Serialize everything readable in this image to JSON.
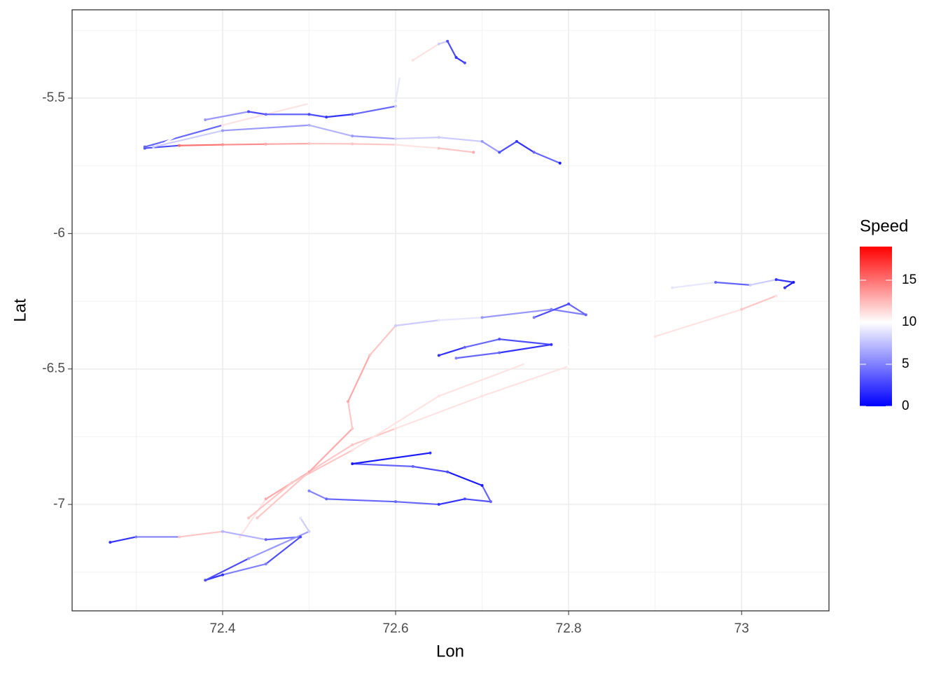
{
  "chart_data": {
    "type": "path",
    "xlabel": "Lon",
    "ylabel": "Lat",
    "xlim": [
      72.226,
      73.101
    ],
    "ylim": [
      -7.393,
      -5.174
    ],
    "xticks": [
      72.4,
      72.6,
      72.8,
      73.0
    ],
    "yticks": [
      -5.5,
      -6.0,
      -6.5,
      -7.0
    ],
    "xminor": [
      72.3,
      72.5,
      72.7,
      72.9,
      73.1
    ],
    "yminor": [
      -5.25,
      -5.75,
      -6.25,
      -6.75,
      -7.25
    ],
    "grid": true,
    "colorbar": {
      "title": "Speed",
      "lim": [
        0,
        19
      ],
      "ticks": [
        0,
        5,
        10,
        15
      ],
      "midpoint": 10,
      "low": "#0000ff",
      "mid": "#ffffff",
      "high": "#ff0000"
    },
    "series": [
      {
        "x": [
          72.31,
          72.35,
          72.4,
          72.45,
          72.5,
          72.55,
          72.6,
          72.65,
          72.69
        ],
        "y": [
          -5.685,
          -5.675,
          -5.672,
          -5.67,
          -5.668,
          -5.669,
          -5.672,
          -5.685,
          -5.7
        ],
        "speed": [
          3,
          15,
          14,
          13,
          12,
          12,
          11,
          12,
          13
        ]
      },
      {
        "x": [
          72.31,
          72.4,
          72.5,
          72.6,
          72.605,
          72.62,
          72.65,
          72.66,
          72.67,
          72.68
        ],
        "y": [
          -5.68,
          -5.6,
          -5.52,
          -5.51,
          -5.42,
          -5.36,
          -5.3,
          -5.29,
          -5.35,
          -5.37
        ],
        "speed": [
          4,
          11,
          10,
          9,
          10,
          11,
          8,
          3,
          2,
          3
        ]
      },
      {
        "x": [
          72.33,
          72.38,
          72.43,
          72.45,
          72.5,
          72.52,
          72.55,
          72.6
        ],
        "y": [
          -5.67,
          -5.58,
          -5.55,
          -5.56,
          -5.56,
          -5.57,
          -5.56,
          -5.53
        ],
        "speed": [
          10,
          6,
          3,
          4,
          3,
          2,
          4,
          8
        ]
      },
      {
        "x": [
          72.32,
          72.4,
          72.5,
          72.55,
          72.6,
          72.65,
          72.7,
          72.72,
          72.74,
          72.76,
          72.79
        ],
        "y": [
          -5.68,
          -5.62,
          -5.6,
          -5.64,
          -5.65,
          -5.645,
          -5.66,
          -5.7,
          -5.66,
          -5.7,
          -5.74
        ],
        "speed": [
          8,
          6,
          7,
          6,
          8,
          8,
          6,
          3,
          2,
          4,
          1
        ]
      },
      {
        "x": [
          72.42,
          72.45,
          72.5,
          72.55,
          72.6,
          72.7,
          72.8,
          72.9,
          73.0,
          73.04
        ],
        "y": [
          -7.12,
          -6.98,
          -6.88,
          -6.78,
          -6.72,
          -6.6,
          -6.49,
          -6.38,
          -6.28,
          -6.23
        ],
        "speed": [
          11,
          13,
          12,
          12,
          11,
          11,
          10,
          11,
          12,
          11
        ]
      },
      {
        "x": [
          72.43,
          72.48,
          72.55,
          72.65,
          72.75,
          72.85,
          72.92,
          72.97,
          73.01,
          73.04,
          73.06,
          73.05
        ],
        "y": [
          -7.05,
          -6.92,
          -6.8,
          -6.6,
          -6.48,
          -6.36,
          -6.2,
          -6.18,
          -6.19,
          -6.17,
          -6.18,
          -6.2
        ],
        "speed": [
          12,
          12,
          11,
          11,
          10,
          10,
          9,
          4,
          8,
          2,
          1,
          2
        ]
      },
      {
        "x": [
          72.44,
          72.5,
          72.55,
          72.545,
          72.57,
          72.6,
          72.65,
          72.7,
          72.78,
          72.82,
          72.8,
          72.76
        ],
        "y": [
          -7.05,
          -6.88,
          -6.72,
          -6.62,
          -6.45,
          -6.34,
          -6.32,
          -6.31,
          -6.28,
          -6.3,
          -6.26,
          -6.31
        ],
        "speed": [
          12,
          13,
          12,
          13,
          12,
          8,
          9,
          6,
          5,
          4,
          3,
          5
        ]
      },
      {
        "x": [
          72.5,
          72.52,
          72.6,
          72.65,
          72.68,
          72.71,
          72.7,
          72.66,
          72.62,
          72.55,
          72.64
        ],
        "y": [
          -6.95,
          -6.98,
          -6.99,
          -7.0,
          -6.98,
          -6.99,
          -6.93,
          -6.88,
          -6.86,
          -6.85,
          -6.81
        ],
        "speed": [
          5,
          4,
          4,
          2,
          3,
          4,
          1,
          3,
          4,
          1,
          2
        ]
      },
      {
        "x": [
          72.27,
          72.3,
          72.35,
          72.4,
          72.45,
          72.49,
          72.45,
          72.4,
          72.38,
          72.43,
          72.5,
          72.49
        ],
        "y": [
          -7.14,
          -7.12,
          -7.12,
          -7.1,
          -7.13,
          -7.12,
          -7.22,
          -7.26,
          -7.28,
          -7.2,
          -7.1,
          -7.05
        ],
        "speed": [
          2,
          5,
          12,
          7,
          4,
          3,
          5,
          2,
          3,
          6,
          8,
          9
        ]
      },
      {
        "x": [
          72.65,
          72.68,
          72.72,
          72.78,
          72.72,
          72.67
        ],
        "y": [
          -6.45,
          -6.42,
          -6.39,
          -6.41,
          -6.44,
          -6.46
        ],
        "speed": [
          2,
          4,
          3,
          2,
          4,
          5
        ]
      }
    ]
  }
}
